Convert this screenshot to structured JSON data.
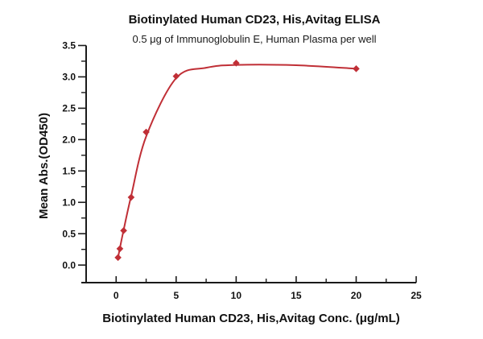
{
  "chart_data": {
    "type": "line",
    "title": "Biotinylated Human CD23, His,Avitag ELISA",
    "subtitle": "0.5 μg of Immunoglobulin E, Human Plasma per well",
    "xlabel": "Biotinylated Human CD23, His,Avitag Conc. (μg/mL)",
    "ylabel": "Mean Abs.(OD450)",
    "series": [
      {
        "name": "Biotinylated Human CD23, His,Avitag",
        "marker": "diamond",
        "color": "#c02f36",
        "points": [
          [
            0.156,
            0.12
          ],
          [
            0.313,
            0.26
          ],
          [
            0.625,
            0.55
          ],
          [
            1.25,
            1.08
          ],
          [
            2.5,
            2.12
          ],
          [
            5,
            3.01
          ],
          [
            10,
            3.22
          ],
          [
            20,
            3.13
          ]
        ],
        "fit_curve": [
          [
            0.156,
            0.12
          ],
          [
            0.313,
            0.27
          ],
          [
            0.625,
            0.56
          ],
          [
            1.25,
            1.1
          ],
          [
            2.5,
            2.05
          ],
          [
            5,
            2.98
          ],
          [
            7.5,
            3.145
          ],
          [
            10,
            3.19
          ],
          [
            15,
            3.185
          ],
          [
            20,
            3.13
          ]
        ]
      }
    ],
    "axes": {
      "xlim": [
        -2.5,
        25
      ],
      "ylim": [
        -0.28,
        3.5
      ],
      "xticks": {
        "major": [
          0,
          5,
          10,
          15,
          20,
          25
        ],
        "labels": [
          "0",
          "5",
          "10",
          "15",
          "20",
          "25"
        ],
        "minor": [
          2.5,
          7.5,
          12.5,
          17.5,
          22.5
        ]
      },
      "yticks": {
        "major": [
          0,
          0.5,
          1,
          1.5,
          2,
          2.5,
          3,
          3.5
        ],
        "labels": [
          "0.0",
          "0.5",
          "1.0",
          "1.5",
          "2.0",
          "2.5",
          "3.0",
          "3.5"
        ],
        "minor": [
          0.25,
          0.75,
          1.25,
          1.75,
          2.25,
          2.75,
          3.25
        ]
      },
      "axis_color": "#1a1a1a",
      "grid": false,
      "legend": "none"
    }
  }
}
